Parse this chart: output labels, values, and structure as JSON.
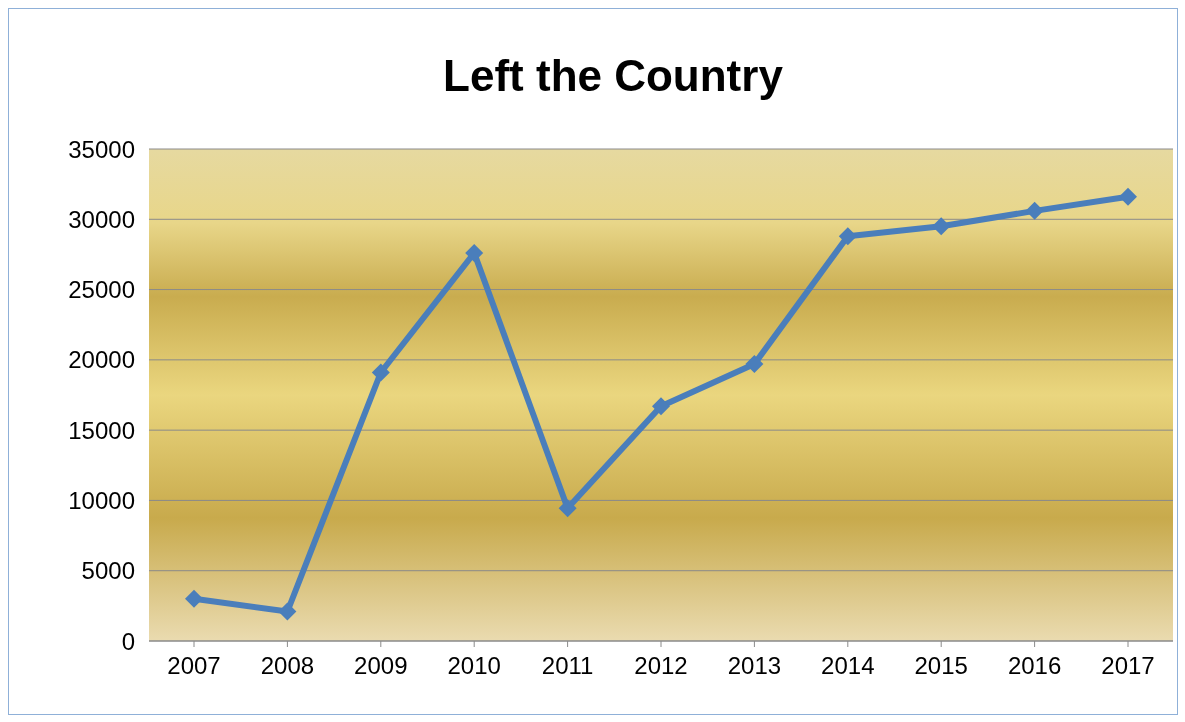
{
  "chart_data": {
    "type": "line",
    "title": "Left the Country",
    "categories": [
      "2007",
      "2008",
      "2009",
      "2010",
      "2011",
      "2012",
      "2013",
      "2014",
      "2015",
      "2016",
      "2017"
    ],
    "series": [
      {
        "color": "#4a7ebb",
        "values": [
          3000,
          2100,
          19100,
          27600,
          9450,
          16700,
          19700,
          28800,
          29500,
          30600,
          31600
        ]
      }
    ],
    "ylim": [
      0,
      35000
    ],
    "yticks": [
      0,
      5000,
      10000,
      15000,
      20000,
      25000,
      30000,
      35000
    ],
    "grid": "y",
    "legend": false,
    "marker": "diamond",
    "line_style": "solid"
  }
}
